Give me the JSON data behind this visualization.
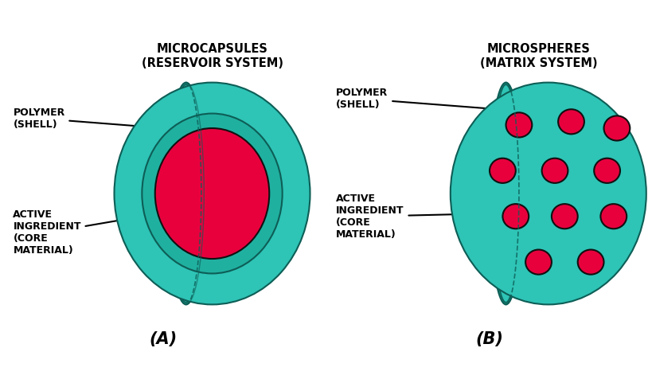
{
  "bg_color": "#ffffff",
  "teal_light": "#2ec4b6",
  "teal_mid": "#20b0a0",
  "teal_dark": "#178a7d",
  "teal_edge": "#0d5e56",
  "red_color": "#e8003d",
  "red_edge": "#111111",
  "title_A": "MICROCAPSULES\n(RESERVOIR SYSTEM)",
  "title_B": "MICROSPHERES\n(MATRIX SYSTEM)",
  "label_A": "(A)",
  "label_B": "(B)",
  "polymer_shell_text": "POLYMER\n(SHELL)",
  "active_ingredient_text": "ACTIVE\nINGREDIENT\n(CORE\nMATERIAL)"
}
